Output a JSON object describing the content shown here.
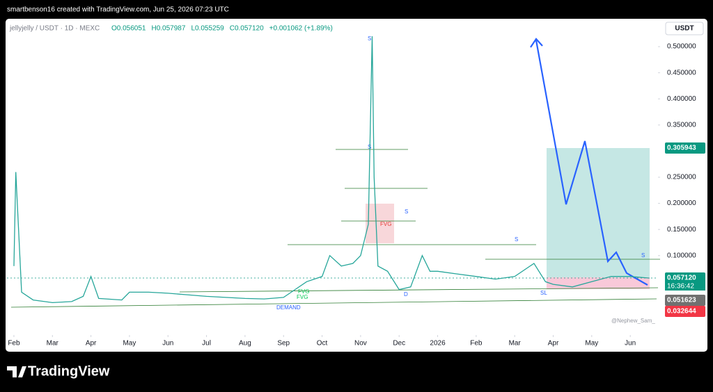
{
  "header": {
    "credit": "smartbenson16 created with TradingView.com, Jun 25, 2026 07:23 UTC",
    "symbol": "jellyjelly / USDT · 1D · MEXC",
    "ohlc": [
      "O0.056051",
      "H0.057987",
      "L0.055259",
      "C0.057120",
      "+0.001062 (+1.89%)"
    ],
    "currency": "USDT",
    "brand": "TradingView",
    "watermark": "@Nephew_Sam_"
  },
  "annotations": [
    "S",
    "S",
    "S",
    "S",
    "S",
    "FVG",
    "D",
    "SL",
    "DEMAND",
    "FVG",
    "FVG"
  ],
  "chart_data": {
    "type": "line",
    "color": "#26a69a",
    "x": [
      0,
      0.05,
      0.2,
      0.5,
      1,
      1.5,
      1.8,
      2.0,
      2.2,
      2.8,
      3.0,
      3.5,
      4,
      4.5,
      5,
      5.5,
      6,
      6.5,
      7,
      7.3,
      7.6,
      8,
      8.2,
      8.5,
      8.8,
      9,
      9.2,
      9.3,
      9.35,
      9.45,
      9.7,
      10,
      10.3,
      10.6,
      10.8,
      11,
      11.5,
      12,
      12.5,
      13,
      13.5,
      13.8,
      14,
      14.5,
      15,
      15.5,
      16,
      16.5
    ],
    "values": [
      0.08,
      0.26,
      0.03,
      0.015,
      0.01,
      0.012,
      0.022,
      0.06,
      0.018,
      0.015,
      0.03,
      0.03,
      0.028,
      0.025,
      0.022,
      0.02,
      0.018,
      0.017,
      0.02,
      0.035,
      0.05,
      0.06,
      0.1,
      0.08,
      0.085,
      0.1,
      0.16,
      0.52,
      0.25,
      0.08,
      0.07,
      0.035,
      0.04,
      0.1,
      0.07,
      0.07,
      0.065,
      0.06,
      0.055,
      0.06,
      0.085,
      0.05,
      0.045,
      0.04,
      0.05,
      0.06,
      0.06,
      0.057
    ],
    "xlim": [
      -0.18,
      16.72
    ],
    "xticks": [
      {
        "value": 0,
        "label": "Feb"
      },
      {
        "value": 1,
        "label": "Mar"
      },
      {
        "value": 2,
        "label": "Apr"
      },
      {
        "value": 3,
        "label": "May"
      },
      {
        "value": 4,
        "label": "Jun"
      },
      {
        "value": 5,
        "label": "Jul"
      },
      {
        "value": 6,
        "label": "Aug"
      },
      {
        "value": 7,
        "label": "Sep"
      },
      {
        "value": 8,
        "label": "Oct"
      },
      {
        "value": 9,
        "label": "Nov"
      },
      {
        "value": 10,
        "label": "Dec"
      },
      {
        "value": 11,
        "label": "2026"
      },
      {
        "value": 12,
        "label": "Feb"
      },
      {
        "value": 13,
        "label": "Mar"
      },
      {
        "value": 14,
        "label": "Apr"
      },
      {
        "value": 15,
        "label": "May"
      },
      {
        "value": 16,
        "label": "Jun"
      }
    ],
    "ylim": [
      -0.052,
      0.552
    ],
    "yticks": [
      {
        "value": 0.1,
        "label": "0.100000"
      },
      {
        "value": 0.15,
        "label": "0.150000"
      },
      {
        "value": 0.2,
        "label": "0.200000"
      },
      {
        "value": 0.25,
        "label": "0.250000"
      },
      {
        "value": 0.35,
        "label": "0.350000"
      },
      {
        "value": 0.4,
        "label": "0.400000"
      },
      {
        "value": 0.45,
        "label": "0.450000"
      },
      {
        "value": 0.5,
        "label": "0.500000"
      }
    ],
    "price_markers": [
      {
        "value": 0.305943,
        "label": "0.305943",
        "color": "#089981"
      },
      {
        "value": 0.05712,
        "label": "0.057120",
        "color": "#089981",
        "countdown": "16:36:42"
      },
      {
        "value": 0.051623,
        "label": "0.051623",
        "color": "#707070"
      },
      {
        "value": 0.032644,
        "label": "0.032644",
        "color": "#f23645"
      }
    ]
  }
}
